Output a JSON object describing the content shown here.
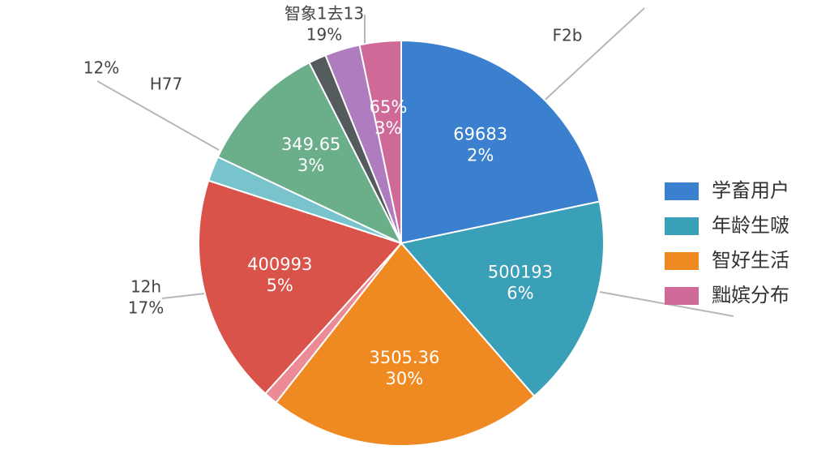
{
  "chart_data": {
    "type": "pie",
    "values": [
      21.7,
      16.9,
      22,
      1.1,
      18.3,
      2,
      10.5,
      1.4,
      2.8,
      3.3
    ],
    "colors": [
      "#3b7fcf",
      "#3aa0b8",
      "#ef8a22",
      "#ec8a96",
      "#d9534a",
      "#79c3cc",
      "#6aae8a",
      "#555a5c",
      "#b07cc0",
      "#cf6a98"
    ],
    "slice_labels": [
      [
        "69683",
        "2%"
      ],
      [
        "500193",
        "6%"
      ],
      [
        "3505.36",
        "30%"
      ],
      null,
      [
        "400993",
        "5%"
      ],
      null,
      [
        "349.65",
        "3%"
      ],
      null,
      null,
      [
        "65%",
        "3%"
      ]
    ],
    "outer_labels": [
      [
        "智象1去13",
        "19%"
      ],
      [
        "F2b"
      ],
      [
        "12%"
      ],
      [
        "H77"
      ],
      [
        "12h",
        "17%"
      ]
    ],
    "legend": [
      {
        "name": "学畜用户",
        "color": "#3b7fcf"
      },
      {
        "name": "年龄生啵",
        "color": "#3aa0b8"
      },
      {
        "name": "智好生活",
        "color": "#ef8a22"
      },
      {
        "name": "黜嫔分布",
        "color": "#cf6a98"
      }
    ]
  }
}
